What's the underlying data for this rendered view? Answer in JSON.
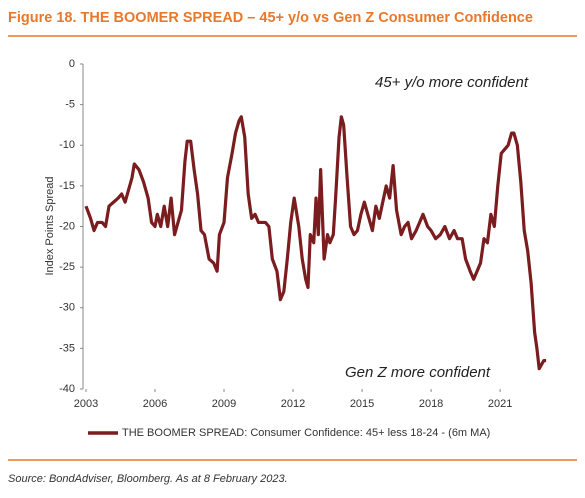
{
  "chart_data": {
    "type": "line",
    "title": "Figure 18. THE BOOMER SPREAD – 45+ y/o vs Gen Z Consumer Confidence",
    "y_label": "Index Points Spread",
    "annotations": [
      "45+ y/o more confident",
      "Gen Z more confident"
    ],
    "source": "Source: BondAdviser, Bloomberg. As at 8 February 2023.",
    "x": [
      2003.0,
      2003.2,
      2003.35,
      2003.5,
      2003.7,
      2003.85,
      2004.0,
      2004.2,
      2004.4,
      2004.55,
      2004.7,
      2004.85,
      2005.0,
      2005.1,
      2005.3,
      2005.5,
      2005.7,
      2005.85,
      2006.0,
      2006.1,
      2006.25,
      2006.4,
      2006.55,
      2006.7,
      2006.85,
      2007.0,
      2007.15,
      2007.3,
      2007.4,
      2007.55,
      2007.7,
      2007.85,
      2008.0,
      2008.15,
      2008.35,
      2008.55,
      2008.7,
      2008.8,
      2009.0,
      2009.15,
      2009.35,
      2009.5,
      2009.65,
      2009.75,
      2009.9,
      2010.05,
      2010.2,
      2010.35,
      2010.5,
      2010.65,
      2010.8,
      2010.95,
      2011.1,
      2011.3,
      2011.45,
      2011.6,
      2011.75,
      2011.9,
      2012.05,
      2012.25,
      2012.4,
      2012.55,
      2012.65,
      2012.75,
      2012.9,
      2013.0,
      2013.1,
      2013.2,
      2013.35,
      2013.5,
      2013.6,
      2013.75,
      2013.85,
      2014.0,
      2014.1,
      2014.2,
      2014.35,
      2014.5,
      2014.65,
      2014.8,
      2014.95,
      2015.1,
      2015.3,
      2015.45,
      2015.6,
      2015.75,
      2015.9,
      2016.05,
      2016.2,
      2016.35,
      2016.5,
      2016.7,
      2016.85,
      2017.0,
      2017.15,
      2017.35,
      2017.5,
      2017.65,
      2017.85,
      2018.0,
      2018.2,
      2018.4,
      2018.6,
      2018.8,
      2019.0,
      2019.15,
      2019.35,
      2019.5,
      2019.7,
      2019.85,
      2020.0,
      2020.15,
      2020.3,
      2020.45,
      2020.6,
      2020.75,
      2020.9,
      2021.05,
      2021.2,
      2021.35,
      2021.5,
      2021.6,
      2021.75,
      2021.9,
      2022.05,
      2022.2,
      2022.35,
      2022.5,
      2022.6,
      2022.7,
      2022.8,
      2022.9,
      2023.0
    ],
    "series": [
      {
        "name": "THE BOOMER SPREAD: Consumer Confidence: 45+ less 18-24 - (6m MA)",
        "color": "#7b1c1f",
        "values": [
          -17.5,
          -19,
          -20.5,
          -19.5,
          -19.5,
          -20,
          -17.5,
          -17,
          -16.5,
          -16,
          -17,
          -15.5,
          -14,
          -12.3,
          -13,
          -14.5,
          -16.5,
          -19.5,
          -20,
          -18.5,
          -20,
          -17.5,
          -20,
          -16.5,
          -21,
          -19.5,
          -18,
          -12,
          -9.5,
          -9.5,
          -13,
          -16,
          -20.5,
          -21,
          -24,
          -24.5,
          -25.5,
          -21,
          -19.5,
          -14,
          -11,
          -8.5,
          -7,
          -6.5,
          -9,
          -16,
          -19,
          -18.5,
          -19.5,
          -19.5,
          -19.5,
          -20,
          -24,
          -25.5,
          -29,
          -28,
          -24,
          -19.5,
          -16.5,
          -20,
          -24,
          -26.5,
          -27.5,
          -21,
          -22,
          -16.5,
          -21,
          -13,
          -24,
          -21,
          -22,
          -21,
          -16.5,
          -9,
          -6.5,
          -7.5,
          -14,
          -20,
          -21,
          -20.5,
          -18.5,
          -17,
          -19,
          -20.5,
          -17.5,
          -19,
          -17,
          -15,
          -16.5,
          -12.5,
          -18,
          -21,
          -20,
          -19.5,
          -21.5,
          -20.5,
          -19.5,
          -18.5,
          -20,
          -20.5,
          -21.5,
          -21,
          -20,
          -21.5,
          -20.5,
          -21.5,
          -21.5,
          -24,
          -25.5,
          -26.5,
          -25.5,
          -24.5,
          -21.5,
          -22,
          -18.5,
          -20,
          -15,
          -11,
          -10.5,
          -10,
          -8.5,
          -8.5,
          -10,
          -14.5,
          -20.5,
          -23,
          -27,
          -33,
          -35,
          -37.5,
          -37,
          -36.5,
          -36.5
        ]
      }
    ],
    "xlim": [
      2002.87,
      2023.3
    ],
    "xticks": [
      2003,
      2006,
      2009,
      2012,
      2015,
      2018,
      2021
    ],
    "ylim": [
      -40,
      0
    ],
    "yticks": [
      0,
      -5,
      -10,
      -15,
      -20,
      -25,
      -30,
      -35,
      -40
    ],
    "grid": false
  }
}
